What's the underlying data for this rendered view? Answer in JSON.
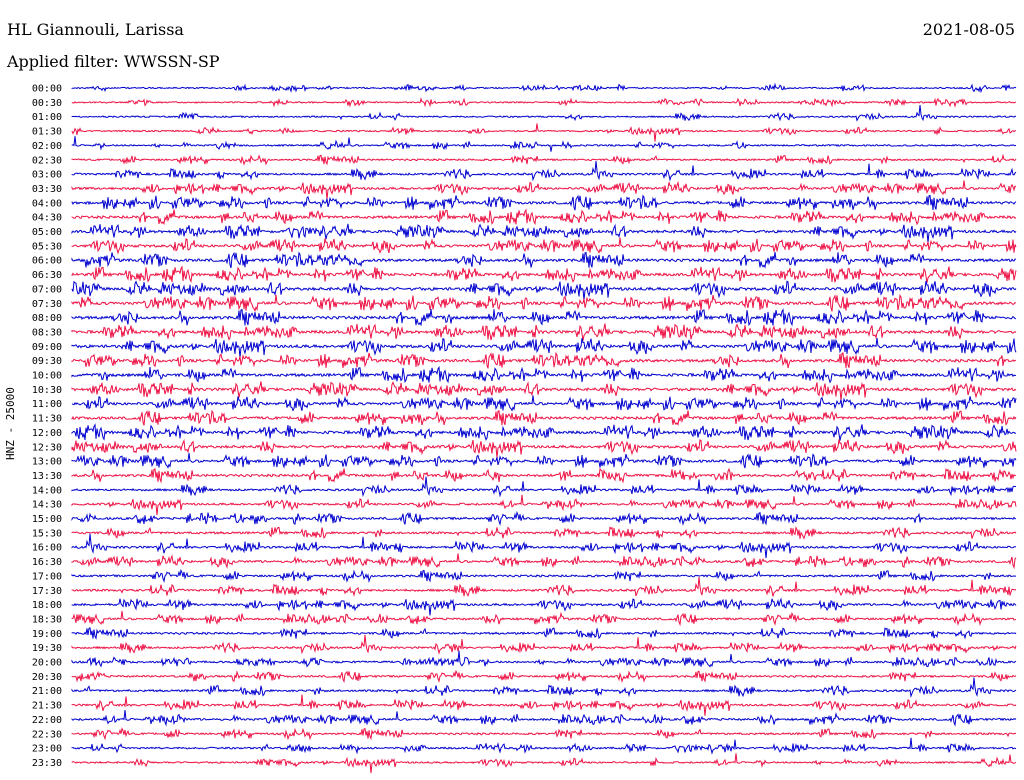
{
  "header": {
    "station": "HL Giannouli, Larissa",
    "date": "2021-08-05",
    "filter": "Applied filter: WWSSN-SP"
  },
  "chart_data": {
    "type": "line",
    "title": "HL Giannouli, Larissa",
    "ylabel": "HNZ - 25000",
    "time_labels": [
      "00:00",
      "00:30",
      "01:00",
      "01:30",
      "02:00",
      "02:30",
      "03:00",
      "03:30",
      "04:00",
      "04:30",
      "05:00",
      "05:30",
      "06:00",
      "06:30",
      "07:00",
      "07:30",
      "08:00",
      "08:30",
      "09:00",
      "09:30",
      "10:00",
      "10:30",
      "11:00",
      "11:30",
      "12:00",
      "12:30",
      "13:00",
      "13:30",
      "14:00",
      "14:30",
      "15:00",
      "15:30",
      "16:00",
      "16:30",
      "17:00",
      "17:30",
      "18:00",
      "18:30",
      "19:00",
      "19:30",
      "20:00",
      "20:30",
      "21:00",
      "21:30",
      "22:00",
      "22:30",
      "23:00",
      "23:30"
    ],
    "trace_colors": [
      "#0000d0",
      "#ee1144"
    ],
    "activity_level": [
      0.05,
      0.05,
      0.08,
      0.08,
      0.12,
      0.18,
      0.3,
      0.4,
      0.55,
      0.55,
      0.55,
      0.55,
      0.6,
      0.6,
      0.65,
      0.65,
      0.65,
      0.65,
      0.65,
      0.6,
      0.6,
      0.6,
      0.55,
      0.55,
      0.6,
      0.55,
      0.5,
      0.45,
      0.3,
      0.3,
      0.35,
      0.35,
      0.35,
      0.35,
      0.3,
      0.35,
      0.35,
      0.3,
      0.3,
      0.25,
      0.25,
      0.25,
      0.3,
      0.3,
      0.3,
      0.25,
      0.2,
      0.15
    ]
  }
}
